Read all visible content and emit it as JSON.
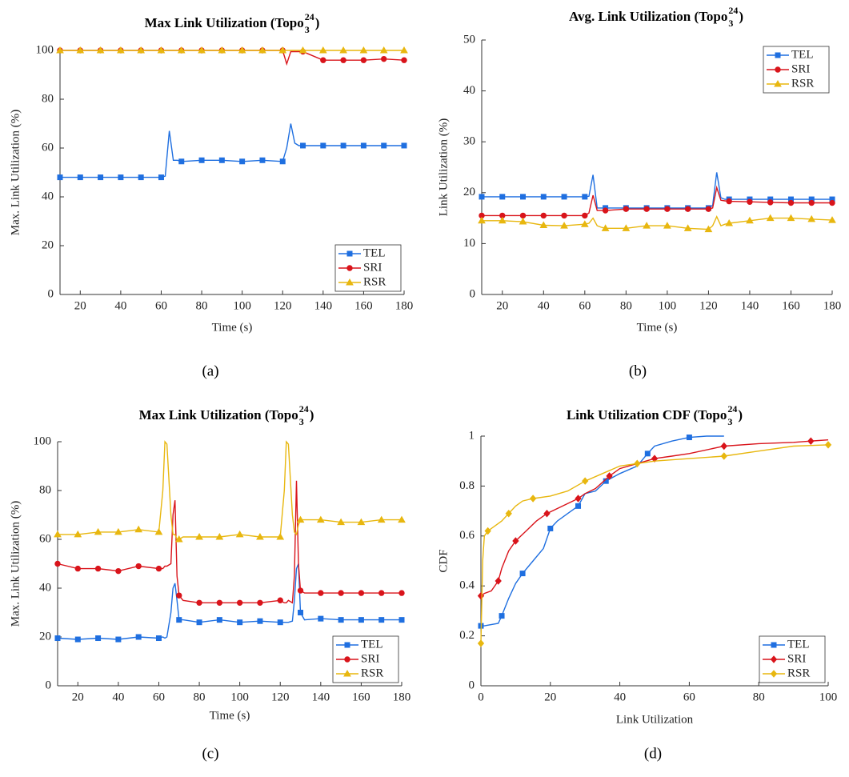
{
  "chart_data": [
    {
      "type": "line",
      "title": {
        "text": "Max Link Utilization (Topo",
        "sub": "3",
        "sup": "24",
        "end": ")"
      },
      "x_label": "Time (s)",
      "y_label": "Max. Link Utilization (%)",
      "caption": "(a)",
      "x": [
        10,
        20,
        30,
        40,
        50,
        60,
        62,
        64,
        66,
        68,
        70,
        80,
        90,
        100,
        110,
        120,
        122,
        124,
        126,
        128,
        130,
        140,
        150,
        160,
        170,
        180
      ],
      "series": [
        {
          "name": "TEL",
          "color": "#1f6fe0",
          "marker": "square",
          "values": [
            48,
            48,
            48,
            48,
            48,
            48,
            48.5,
            67,
            55,
            55,
            54.5,
            55,
            55,
            54.5,
            55,
            54.5,
            60,
            70,
            62,
            61,
            61,
            61,
            61,
            61,
            61,
            61
          ]
        },
        {
          "name": "SRI",
          "color": "#d9141b",
          "marker": "circle",
          "values": [
            100,
            100,
            100,
            100,
            100,
            100,
            100,
            100,
            100,
            100,
            100,
            100,
            100,
            100,
            100,
            100,
            94.5,
            99.5,
            99.5,
            99.5,
            99.5,
            96,
            96,
            96,
            96.5,
            96
          ]
        },
        {
          "name": "RSR",
          "color": "#e8b70f",
          "marker": "triangle",
          "values": [
            100,
            100,
            100,
            100,
            100,
            100,
            100,
            100,
            100,
            100,
            100,
            100,
            100,
            100,
            100,
            100,
            100,
            100,
            100,
            100,
            100,
            100,
            100,
            100,
            100,
            100
          ]
        }
      ],
      "xlim": [
        10,
        180
      ],
      "xticks": [
        20,
        40,
        60,
        80,
        100,
        120,
        140,
        160,
        180
      ],
      "ylim": [
        0,
        100
      ],
      "yticks": [
        0,
        20,
        40,
        60,
        80,
        100
      ],
      "grid": false,
      "legend": "lower right"
    },
    {
      "type": "line",
      "title": {
        "text": "Avg. Link Utilization (Topo",
        "sub": "3",
        "sup": "24",
        "end": ")"
      },
      "x_label": "Time (s)",
      "y_label": "Link Utilization (%)",
      "caption": "(b)",
      "x": [
        10,
        20,
        30,
        40,
        50,
        60,
        62,
        64,
        66,
        68,
        70,
        80,
        90,
        100,
        110,
        120,
        122,
        124,
        126,
        128,
        130,
        140,
        150,
        160,
        170,
        180
      ],
      "series": [
        {
          "name": "TEL",
          "color": "#1f6fe0",
          "marker": "square",
          "values": [
            19.2,
            19.2,
            19.2,
            19.2,
            19.2,
            19.2,
            19.3,
            23.5,
            17,
            17,
            17,
            17,
            17,
            17,
            17,
            17,
            17.5,
            24,
            19,
            18.7,
            18.7,
            18.7,
            18.7,
            18.7,
            18.7,
            18.7
          ]
        },
        {
          "name": "SRI",
          "color": "#d9141b",
          "marker": "circle",
          "values": [
            15.5,
            15.5,
            15.5,
            15.5,
            15.5,
            15.5,
            16,
            19.5,
            16.5,
            16.5,
            16.5,
            16.8,
            16.8,
            16.8,
            16.8,
            16.8,
            17,
            21,
            18.5,
            18.4,
            18.3,
            18.2,
            18.1,
            18,
            18,
            18
          ]
        },
        {
          "name": "RSR",
          "color": "#e8b70f",
          "marker": "triangle",
          "values": [
            14.5,
            14.5,
            14.3,
            13.6,
            13.5,
            13.8,
            14,
            15,
            13.5,
            13.2,
            13,
            13,
            13.5,
            13.5,
            13,
            12.8,
            13.5,
            15.3,
            13.5,
            13.8,
            14,
            14.5,
            15,
            15,
            14.8,
            14.6
          ]
        }
      ],
      "xlim": [
        10,
        180
      ],
      "xticks": [
        20,
        40,
        60,
        80,
        100,
        120,
        140,
        160,
        180
      ],
      "ylim": [
        0,
        50
      ],
      "yticks": [
        0,
        10,
        20,
        30,
        40,
        50
      ],
      "grid": false,
      "legend": "upper right"
    },
    {
      "type": "line",
      "title": {
        "text": "Max Link Utilization (Topo",
        "sub": "3",
        "sup": "24",
        "end": ")"
      },
      "x_label": "Time (s)",
      "y_label": "Max. Link Utilization (%)",
      "caption": "(c)",
      "x": [
        10,
        20,
        30,
        40,
        50,
        60,
        62,
        63,
        64,
        66,
        67,
        68,
        69,
        70,
        72,
        80,
        90,
        100,
        110,
        120,
        122,
        123,
        124,
        126,
        127,
        128,
        129,
        130,
        132,
        140,
        150,
        160,
        170,
        180
      ],
      "series": [
        {
          "name": "TEL",
          "color": "#1f6fe0",
          "marker": "square",
          "values": [
            19.5,
            19,
            19.5,
            19,
            20,
            19.5,
            20,
            19.5,
            20,
            30,
            40,
            42,
            35,
            27,
            27,
            26,
            27,
            26,
            26.5,
            26,
            26,
            26,
            26,
            26.5,
            35,
            48,
            50,
            30,
            27,
            27.5,
            27,
            27,
            27,
            27
          ]
        },
        {
          "name": "SRI",
          "color": "#d9141b",
          "marker": "circle",
          "values": [
            50,
            48,
            48,
            47,
            49,
            48,
            48,
            49,
            49,
            50,
            70,
            76,
            45,
            37,
            35,
            34,
            34,
            34,
            34,
            35,
            34,
            34,
            35,
            34,
            45,
            84,
            50,
            39,
            38,
            38,
            38,
            38,
            38,
            38
          ]
        },
        {
          "name": "RSR",
          "color": "#e8b70f",
          "marker": "triangle",
          "values": [
            62,
            62,
            63,
            63,
            64,
            63,
            80,
            100,
            99,
            70,
            62,
            62,
            60,
            60,
            61,
            61,
            61,
            62,
            61,
            61,
            80,
            100,
            99,
            70,
            63,
            62,
            66,
            68,
            68,
            68,
            67,
            67,
            68,
            68
          ]
        }
      ],
      "xlim": [
        10,
        180
      ],
      "xticks": [
        20,
        40,
        60,
        80,
        100,
        120,
        140,
        160,
        180
      ],
      "ylim": [
        0,
        100
      ],
      "yticks": [
        0,
        20,
        40,
        60,
        80,
        100
      ],
      "grid": false,
      "legend": "lower right"
    },
    {
      "type": "cdf",
      "title": {
        "text": "Link Utilization CDF (Topo",
        "sub": "3",
        "sup": "24",
        "end": ")"
      },
      "x_label": "Link Utilization",
      "y_label": "CDF",
      "caption": "(d)",
      "series": [
        {
          "name": "TEL",
          "color": "#1f6fe0",
          "marker": "square",
          "x": [
            0,
            1,
            5,
            6,
            8,
            10,
            12,
            15,
            18,
            20,
            22,
            25,
            28,
            30,
            33,
            36,
            40,
            45,
            48,
            50,
            55,
            60,
            65,
            70
          ],
          "values": [
            0.24,
            0.24,
            0.25,
            0.28,
            0.35,
            0.41,
            0.45,
            0.5,
            0.55,
            0.63,
            0.66,
            0.69,
            0.72,
            0.77,
            0.78,
            0.82,
            0.85,
            0.88,
            0.93,
            0.96,
            0.98,
            0.995,
            1,
            1
          ]
        },
        {
          "name": "SRI",
          "color": "#d9141b",
          "marker": "diamond",
          "x": [
            0,
            1,
            3,
            5,
            6,
            8,
            10,
            13,
            16,
            19,
            22,
            25,
            28,
            30,
            33,
            37,
            40,
            45,
            50,
            55,
            60,
            70,
            80,
            90,
            95,
            100
          ],
          "values": [
            0.36,
            0.37,
            0.38,
            0.42,
            0.47,
            0.54,
            0.58,
            0.62,
            0.66,
            0.69,
            0.71,
            0.73,
            0.75,
            0.77,
            0.79,
            0.84,
            0.87,
            0.89,
            0.91,
            0.92,
            0.93,
            0.96,
            0.97,
            0.975,
            0.98,
            0.985
          ]
        },
        {
          "name": "RSR",
          "color": "#e8b70f",
          "marker": "diamond",
          "x": [
            0,
            0.5,
            1,
            2,
            4,
            6,
            8,
            10,
            12,
            15,
            20,
            25,
            30,
            35,
            40,
            45,
            50,
            60,
            70,
            80,
            90,
            100
          ],
          "values": [
            0.17,
            0.5,
            0.6,
            0.62,
            0.64,
            0.66,
            0.69,
            0.72,
            0.74,
            0.75,
            0.76,
            0.78,
            0.82,
            0.85,
            0.88,
            0.89,
            0.9,
            0.91,
            0.92,
            0.94,
            0.96,
            0.965
          ]
        }
      ],
      "xlim": [
        0,
        100
      ],
      "xticks": [
        0,
        20,
        40,
        60,
        80,
        100
      ],
      "ylim": [
        0,
        1
      ],
      "yticks": [
        0,
        0.2,
        0.4,
        0.6,
        0.8,
        1
      ],
      "grid": false,
      "legend": "lower right"
    }
  ]
}
